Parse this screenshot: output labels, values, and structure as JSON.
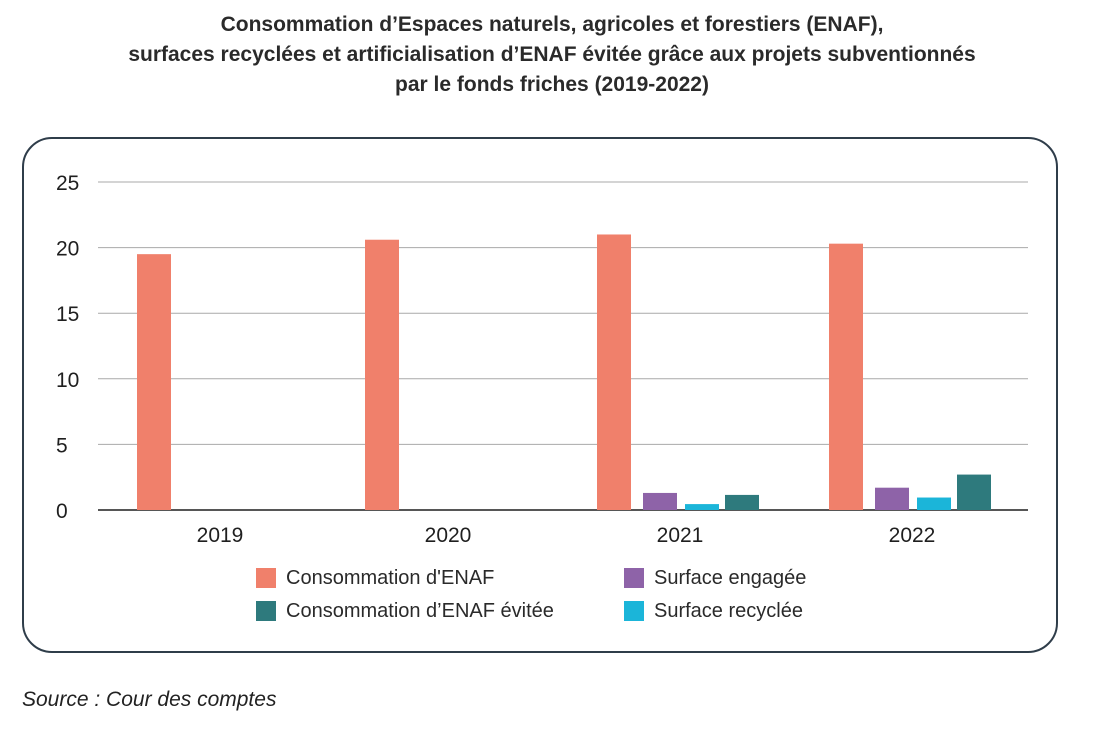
{
  "header": {
    "title_lines": [
      "Consommation d’Espaces naturels, agricoles et forestiers (ENAF),",
      "surfaces recyclées et artificialisation d’ENAF évitée grâce aux projets subventionnés",
      "par le fonds friches (2019-2022)"
    ]
  },
  "footer": {
    "source": "Source : Cour des comptes"
  },
  "chart_data": {
    "type": "bar",
    "title": "Consommation d’Espaces naturels, agricoles et forestiers (ENAF), surfaces recyclées et artificialisation d’ENAF évitée grâce aux projets subventionnés par le fonds friches (2019-2022)",
    "xlabel": "",
    "ylabel": "",
    "categories": [
      "2019",
      "2020",
      "2021",
      "2022"
    ],
    "ylim": [
      0,
      25
    ],
    "yticks": [
      0,
      5,
      10,
      15,
      20,
      25
    ],
    "grid": true,
    "legend_position": "bottom",
    "series": [
      {
        "name": "Consommation d'ENAF",
        "color": "#f0806b",
        "values": [
          19.5,
          20.6,
          21.0,
          20.3
        ]
      },
      {
        "name": "Surface engagée",
        "color": "#8e63a8",
        "values": [
          null,
          null,
          1.3,
          1.7
        ]
      },
      {
        "name": "Surface recyclée",
        "color": "#1bb5d9",
        "values": [
          null,
          null,
          0.45,
          0.95
        ]
      },
      {
        "name": "Consommation d’ENAF évitée",
        "color": "#2e7a7d",
        "values": [
          null,
          null,
          1.15,
          2.7
        ]
      }
    ],
    "legend_order": [
      0,
      1,
      3,
      2
    ]
  }
}
